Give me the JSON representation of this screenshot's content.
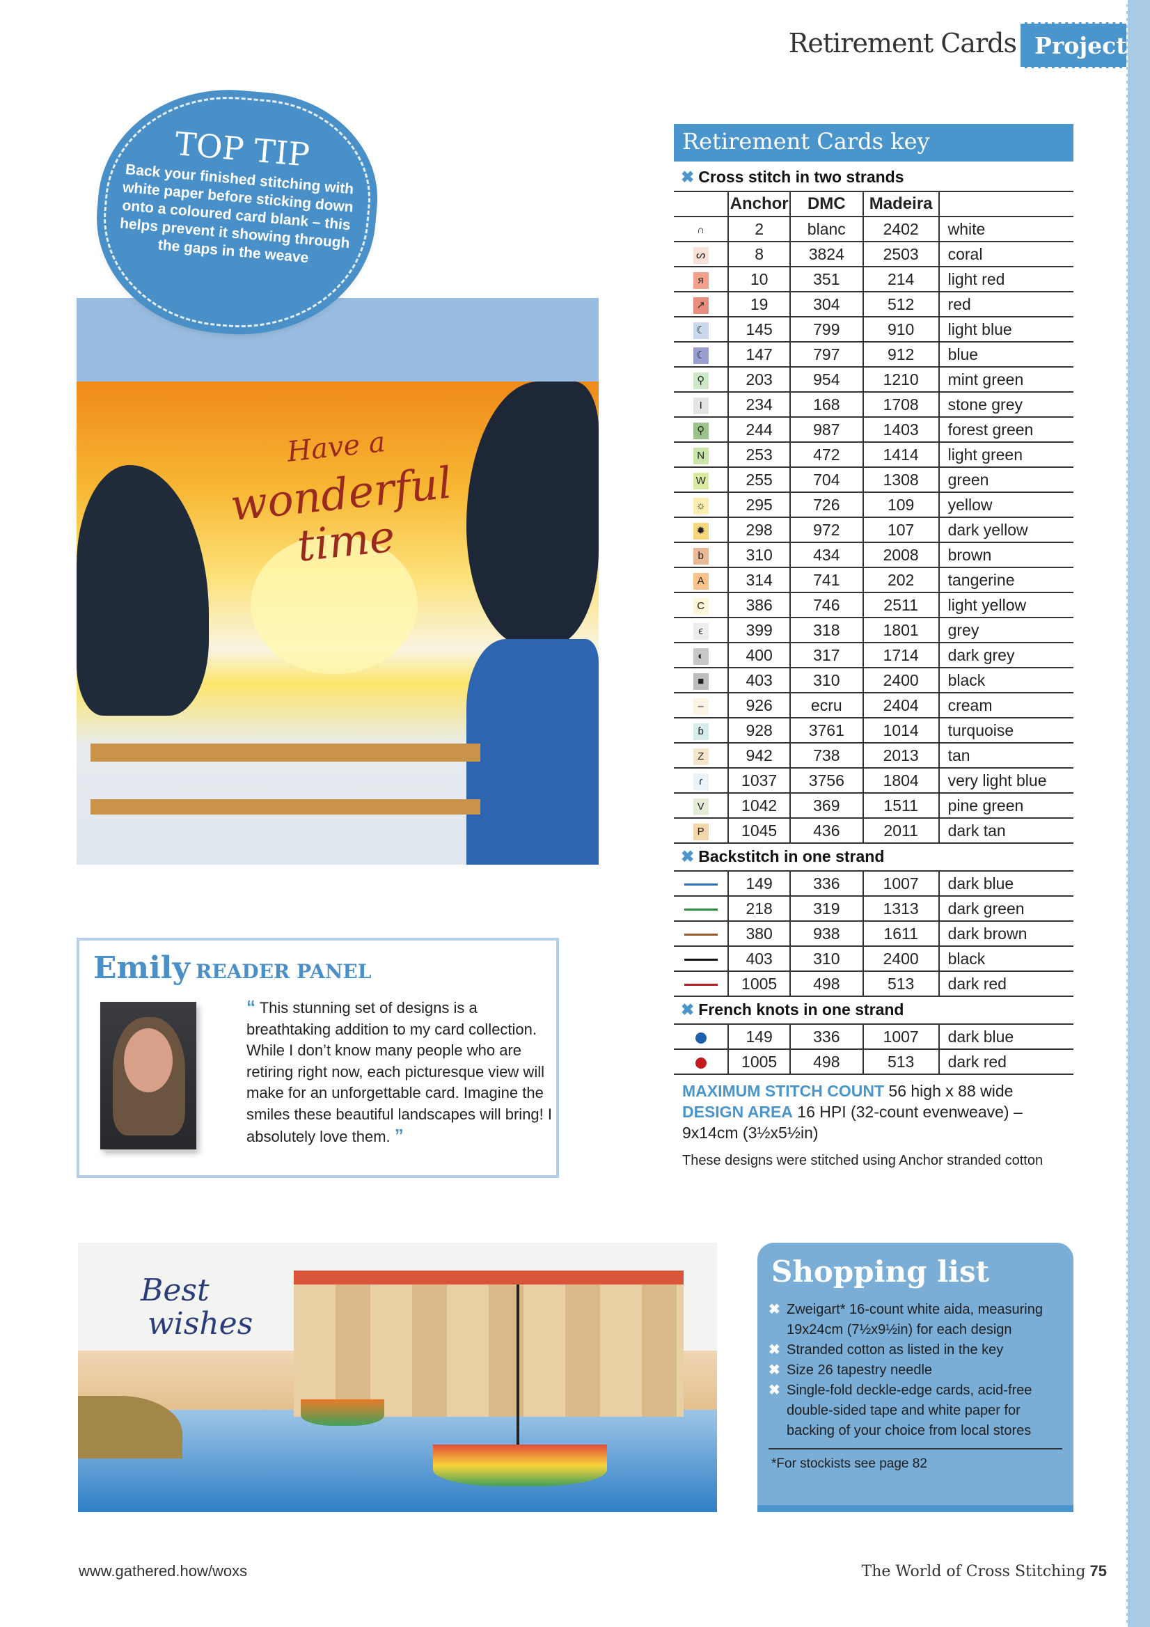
{
  "header": {
    "title": "Retirement Cards",
    "tab": "Project"
  },
  "top_tip": {
    "heading": "TOP TIP",
    "body": "Back your finished stitching with white paper before sticking down onto a coloured card blank – this helps prevent it showing through the gaps in the weave"
  },
  "photo1": {
    "stitched_text": [
      "Have a",
      "wonderful",
      "time"
    ]
  },
  "key": {
    "title": "Retirement Cards key",
    "cross_stitch": {
      "heading": "Cross stitch in two strands",
      "columns": [
        "",
        "Anchor",
        "DMC",
        "Madeira",
        ""
      ],
      "rows": [
        {
          "symbol": "∩",
          "color": "#ffffff",
          "anchor": "2",
          "dmc": "blanc",
          "madeira": "2402",
          "name": "white"
        },
        {
          "symbol": "ᔕ",
          "color": "#f9e3d8",
          "anchor": "8",
          "dmc": "3824",
          "madeira": "2503",
          "name": "coral"
        },
        {
          "symbol": "я",
          "color": "#f2a08c",
          "anchor": "10",
          "dmc": "351",
          "madeira": "214",
          "name": "light red"
        },
        {
          "symbol": "↗",
          "color": "#e98e7e",
          "anchor": "19",
          "dmc": "304",
          "madeira": "512",
          "name": "red"
        },
        {
          "symbol": "☾",
          "color": "#c9d8ec",
          "anchor": "145",
          "dmc": "799",
          "madeira": "910",
          "name": "light blue"
        },
        {
          "symbol": "☾",
          "color": "#9a9fd2",
          "anchor": "147",
          "dmc": "797",
          "madeira": "912",
          "name": "blue"
        },
        {
          "symbol": "⚲",
          "color": "#cfe8c8",
          "anchor": "203",
          "dmc": "954",
          "madeira": "1210",
          "name": "mint green"
        },
        {
          "symbol": "I",
          "color": "#e4e4e4",
          "anchor": "234",
          "dmc": "168",
          "madeira": "1708",
          "name": "stone grey"
        },
        {
          "symbol": "⚲",
          "color": "#9cc48a",
          "anchor": "244",
          "dmc": "987",
          "madeira": "1403",
          "name": "forest green"
        },
        {
          "symbol": "N",
          "color": "#c9e6a8",
          "anchor": "253",
          "dmc": "472",
          "madeira": "1414",
          "name": "light green"
        },
        {
          "symbol": "W",
          "color": "#d8eba0",
          "anchor": "255",
          "dmc": "704",
          "madeira": "1308",
          "name": "green"
        },
        {
          "symbol": "☼",
          "color": "#fbeeb0",
          "anchor": "295",
          "dmc": "726",
          "madeira": "109",
          "name": "yellow"
        },
        {
          "symbol": "✹",
          "color": "#f8d77a",
          "anchor": "298",
          "dmc": "972",
          "madeira": "107",
          "name": "dark yellow"
        },
        {
          "symbol": "b",
          "color": "#e8b994",
          "anchor": "310",
          "dmc": "434",
          "madeira": "2008",
          "name": "brown"
        },
        {
          "symbol": "A",
          "color": "#f8c38a",
          "anchor": "314",
          "dmc": "741",
          "madeira": "202",
          "name": "tangerine"
        },
        {
          "symbol": "C",
          "color": "#fdf6d8",
          "anchor": "386",
          "dmc": "746",
          "madeira": "2511",
          "name": "light yellow"
        },
        {
          "symbol": "ϵ",
          "color": "#ececec",
          "anchor": "399",
          "dmc": "318",
          "madeira": "1801",
          "name": "grey"
        },
        {
          "symbol": "◐",
          "color": "#c8c8c8",
          "anchor": "400",
          "dmc": "317",
          "madeira": "1714",
          "name": "dark grey"
        },
        {
          "symbol": "■",
          "color": "#bdbdbd",
          "anchor": "403",
          "dmc": "310",
          "madeira": "2400",
          "name": "black"
        },
        {
          "symbol": "–",
          "color": "#fbf3e4",
          "anchor": "926",
          "dmc": "ecru",
          "madeira": "2404",
          "name": "cream"
        },
        {
          "symbol": "ɓ",
          "color": "#d6ecec",
          "anchor": "928",
          "dmc": "3761",
          "madeira": "1014",
          "name": "turquoise"
        },
        {
          "symbol": "Z",
          "color": "#f6e6cc",
          "anchor": "942",
          "dmc": "738",
          "madeira": "2013",
          "name": "tan"
        },
        {
          "symbol": "ɾ",
          "color": "#eaf2fa",
          "anchor": "1037",
          "dmc": "3756",
          "madeira": "1804",
          "name": "very light blue"
        },
        {
          "symbol": "V",
          "color": "#e4ecd8",
          "anchor": "1042",
          "dmc": "369",
          "madeira": "1511",
          "name": "pine green"
        },
        {
          "symbol": "P",
          "color": "#f3d7a8",
          "anchor": "1045",
          "dmc": "436",
          "madeira": "2011",
          "name": "dark tan"
        }
      ]
    },
    "backstitch": {
      "heading": "Backstitch in one strand",
      "rows": [
        {
          "color": "#2d6fb8",
          "anchor": "149",
          "dmc": "336",
          "madeira": "1007",
          "name": "dark blue"
        },
        {
          "color": "#2e8a3e",
          "anchor": "218",
          "dmc": "319",
          "madeira": "1313",
          "name": "dark green"
        },
        {
          "color": "#9a5a2e",
          "anchor": "380",
          "dmc": "938",
          "madeira": "1611",
          "name": "dark brown"
        },
        {
          "color": "#111111",
          "anchor": "403",
          "dmc": "310",
          "madeira": "2400",
          "name": "black"
        },
        {
          "color": "#b3202a",
          "anchor": "1005",
          "dmc": "498",
          "madeira": "513",
          "name": "dark red"
        }
      ]
    },
    "french_knots": {
      "heading": "French knots in one strand",
      "rows": [
        {
          "color": "#1f5fb0",
          "anchor": "149",
          "dmc": "336",
          "madeira": "1007",
          "name": "dark blue"
        },
        {
          "color": "#c41a1f",
          "anchor": "1005",
          "dmc": "498",
          "madeira": "513",
          "name": "dark red"
        }
      ]
    },
    "stitch_count_label": "MAXIMUM STITCH COUNT",
    "stitch_count": "56 high x 88 wide",
    "design_area_label": "DESIGN AREA",
    "design_area": "16 HPI (32-count evenweave) – 9x14cm (3½x5½in)",
    "note": "These designs were stitched using Anchor stranded cotton"
  },
  "reader_panel": {
    "name": "Emily",
    "label": "READER PANEL",
    "open_quote": "“",
    "close_quote": "”",
    "quote": "This stunning set of designs is a breathtaking addition to my card collection. While I don’t know many people who are retiring right now, each picturesque view will make for an unforgettable card. Imagine the smiles these beautiful landscapes will bring! I absolutely love them."
  },
  "photo2": {
    "stitched_text": [
      "Best",
      "wishes"
    ]
  },
  "shopping": {
    "title": "Shopping list",
    "items": [
      "Zweigart* 16-count white aida, measuring 19x24cm (7½x9½in) for each design",
      "Stranded cotton as listed in the key",
      "Size 26 tapestry needle",
      "Single-fold deckle-edge cards, acid-free double-sided tape and white paper for backing of your choice from local stores"
    ],
    "footnote": "*For stockists see page 82"
  },
  "footer": {
    "url": "www.gathered.how/woxs",
    "magazine": "The World of Cross Stitching",
    "page": "75"
  },
  "colors": {
    "accent": "#4a96cc",
    "panel": "#7aaed7"
  }
}
